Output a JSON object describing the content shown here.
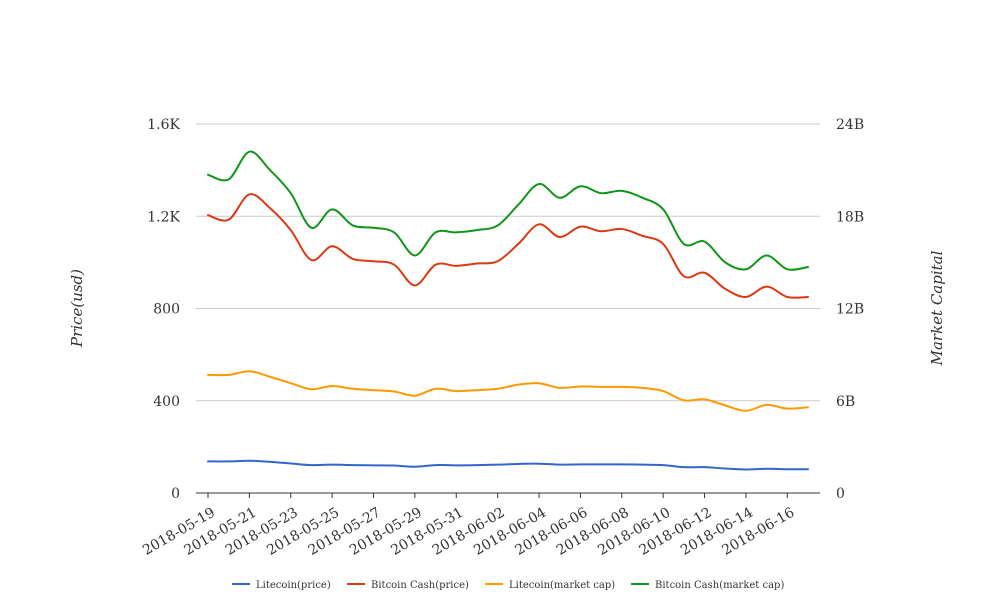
{
  "chart_data": {
    "type": "line",
    "title": "",
    "ylabel_left": "Price(usd)",
    "ylabel_right": "Market Capital",
    "ylim_left": [
      0,
      1600
    ],
    "ylim_right": [
      0,
      24000000000
    ],
    "yticks_left": [
      {
        "value": 0,
        "label": "0"
      },
      {
        "value": 400,
        "label": "400"
      },
      {
        "value": 800,
        "label": "800"
      },
      {
        "value": 1200,
        "label": "1.2K"
      },
      {
        "value": 1600,
        "label": "1.6K"
      }
    ],
    "yticks_right": [
      {
        "value": 0,
        "label": "0"
      },
      {
        "value": 6000000000,
        "label": "6B"
      },
      {
        "value": 12000000000,
        "label": "12B"
      },
      {
        "value": 18000000000,
        "label": "18B"
      },
      {
        "value": 24000000000,
        "label": "24B"
      }
    ],
    "x": [
      "2018-05-19",
      "2018-05-20",
      "2018-05-21",
      "2018-05-22",
      "2018-05-23",
      "2018-05-24",
      "2018-05-25",
      "2018-05-26",
      "2018-05-27",
      "2018-05-28",
      "2018-05-29",
      "2018-05-30",
      "2018-05-31",
      "2018-06-01",
      "2018-06-02",
      "2018-06-03",
      "2018-06-04",
      "2018-06-05",
      "2018-06-06",
      "2018-06-07",
      "2018-06-08",
      "2018-06-09",
      "2018-06-10",
      "2018-06-11",
      "2018-06-12",
      "2018-06-13",
      "2018-06-14",
      "2018-06-15",
      "2018-06-16",
      "2018-06-17"
    ],
    "x_tick_labels": [
      "2018-05-19",
      "2018-05-21",
      "2018-05-23",
      "2018-05-25",
      "2018-05-27",
      "2018-05-29",
      "2018-05-31",
      "2018-06-02",
      "2018-06-04",
      "2018-06-06",
      "2018-06-08",
      "2018-06-10",
      "2018-06-12",
      "2018-06-14",
      "2018-06-16"
    ],
    "series": [
      {
        "name": "Litecoin(price)",
        "axis": "left",
        "color": "#3366cc",
        "values": [
          137,
          137,
          140,
          135,
          128,
          121,
          123,
          121,
          120,
          119,
          114,
          121,
          120,
          121,
          123,
          126,
          127,
          123,
          124,
          124,
          124,
          123,
          121,
          112,
          112,
          106,
          102,
          105,
          103,
          103
        ]
      },
      {
        "name": "Bitcoin Cash(price)",
        "axis": "left",
        "color": "#dc3912",
        "values": [
          1205,
          1185,
          1295,
          1235,
          1140,
          1010,
          1070,
          1015,
          1005,
          990,
          900,
          990,
          985,
          995,
          1005,
          1080,
          1165,
          1110,
          1155,
          1135,
          1145,
          1115,
          1080,
          940,
          955,
          885,
          850,
          895,
          850,
          850
        ]
      },
      {
        "name": "Litecoin(market cap)",
        "axis": "right",
        "color": "#ff9900",
        "values": [
          7680000000,
          7680000000,
          7920000000,
          7560000000,
          7140000000,
          6750000000,
          6960000000,
          6780000000,
          6690000000,
          6600000000,
          6330000000,
          6780000000,
          6630000000,
          6690000000,
          6780000000,
          7050000000,
          7140000000,
          6840000000,
          6930000000,
          6900000000,
          6900000000,
          6840000000,
          6630000000,
          6030000000,
          6090000000,
          5700000000,
          5340000000,
          5730000000,
          5490000000,
          5580000000
        ]
      },
      {
        "name": "Bitcoin Cash(market cap)",
        "axis": "right",
        "color": "#109618",
        "values": [
          20700000000,
          20400000000,
          22200000000,
          21000000000,
          19500000000,
          17250000000,
          18450000000,
          17400000000,
          17250000000,
          16950000000,
          15450000000,
          16950000000,
          16950000000,
          17100000000,
          17400000000,
          18750000000,
          20100000000,
          19200000000,
          19950000000,
          19500000000,
          19650000000,
          19200000000,
          18450000000,
          16200000000,
          16350000000,
          15000000000,
          14550000000,
          15450000000,
          14550000000,
          14700000000
        ]
      }
    ],
    "grid": true,
    "legend_position": "bottom"
  }
}
